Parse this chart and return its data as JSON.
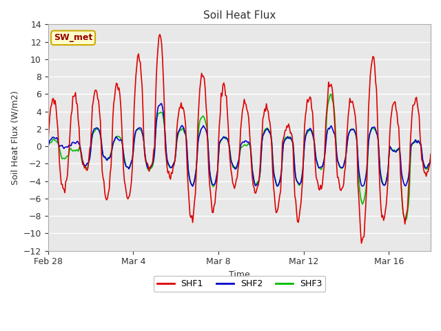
{
  "title": "Soil Heat Flux",
  "xlabel": "Time",
  "ylabel": "Soil Heat Flux (W/m2)",
  "ylim": [
    -12,
    14
  ],
  "yticks": [
    -12,
    -10,
    -8,
    -6,
    -4,
    -2,
    0,
    2,
    4,
    6,
    8,
    10,
    12,
    14
  ],
  "xtick_labels": [
    "Feb 28",
    "Mar 4",
    "Mar 8",
    "Mar 12",
    "Mar 16"
  ],
  "xtick_positions": [
    0,
    96,
    192,
    288,
    384
  ],
  "annotation_text": "SW_met",
  "annotation_bg": "#ffffcc",
  "annotation_border": "#ccaa00",
  "annotation_text_color": "#990000",
  "line_colors": {
    "SHF1": "#dd0000",
    "SHF2": "#0000cc",
    "SHF3": "#00bb00"
  },
  "line_widths": {
    "SHF1": 1.2,
    "SHF2": 1.2,
    "SHF3": 1.2
  },
  "fig_bg_color": "#ffffff",
  "plot_bg_color": "#e8e8e8",
  "grid_color": "#ffffff",
  "n_points": 432,
  "legend_labels": [
    "SHF1",
    "SHF2",
    "SHF3"
  ]
}
